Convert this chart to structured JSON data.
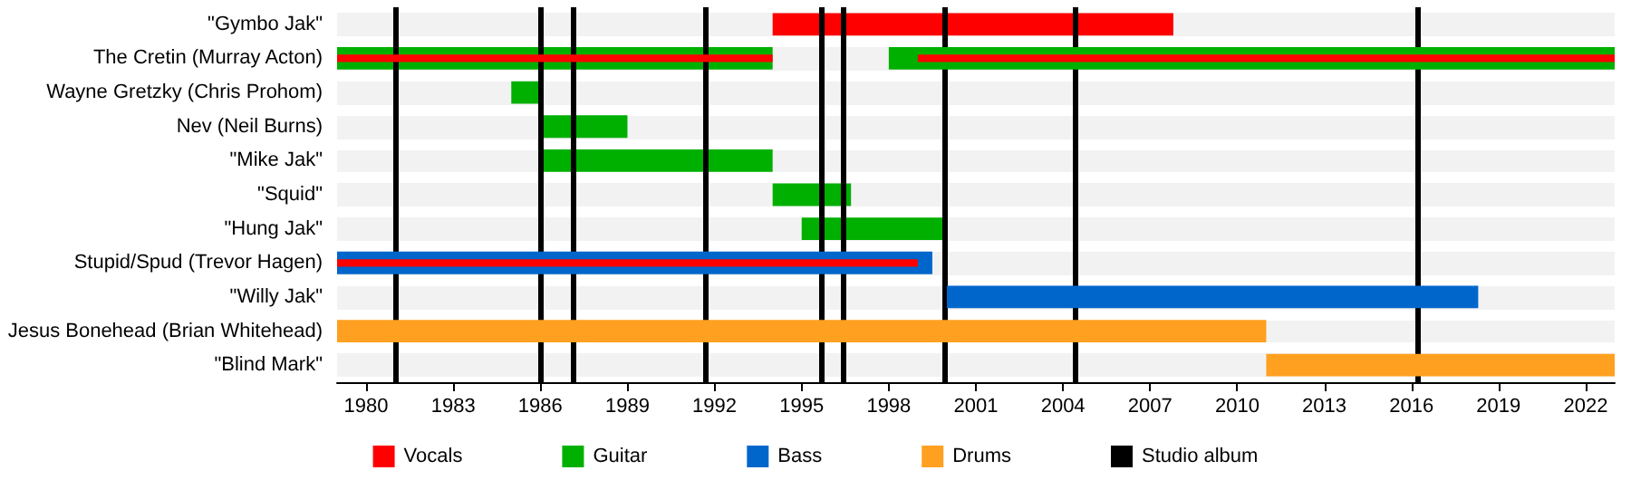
{
  "chart_data": {
    "type": "bar",
    "orientation": "horizontal",
    "categories": [
      "\"Gymbo Jak\"",
      "The Cretin (Murray Acton)",
      "Wayne Gretzky (Chris Prohom)",
      "Nev (Neil Burns)",
      "\"Mike Jak\"",
      "\"Squid\"",
      "\"Hung Jak\"",
      "Stupid/Spud (Trevor Hagen)",
      "\"Willy Jak\"",
      "Jesus Bonehead (Brian Whitehead)",
      "\"Blind Mark\""
    ],
    "series": [
      {
        "name": "Vocals",
        "color": "#ff0000",
        "base": [
          1994,
          null,
          null,
          null,
          null,
          null,
          null,
          null,
          null,
          null,
          null
        ],
        "values": [
          13.8,
          null,
          null,
          null,
          null,
          null,
          null,
          null,
          null,
          null,
          null
        ]
      },
      {
        "name": "Guitar",
        "color": "#00b000",
        "base": [
          null,
          1979,
          1985,
          1986,
          1986,
          1994,
          1995,
          null,
          null,
          null,
          null
        ],
        "values": [
          null,
          15,
          1,
          3,
          8,
          2.7,
          5,
          null,
          null,
          null,
          null
        ]
      },
      {
        "color": "#00b000",
        "base": [
          null,
          1998,
          null,
          null,
          null,
          null,
          null,
          null,
          null,
          null,
          null
        ],
        "values": [
          null,
          25,
          null,
          null,
          null,
          null,
          null,
          null,
          null,
          null,
          null
        ]
      },
      {
        "name": "Bass",
        "color": "#0066cc",
        "base": [
          null,
          null,
          null,
          null,
          null,
          null,
          null,
          1979,
          2000,
          null,
          null
        ],
        "values": [
          null,
          null,
          null,
          null,
          null,
          null,
          null,
          20.5,
          18.3,
          null,
          null
        ]
      },
      {
        "name": "Drums",
        "color": "#ffa020",
        "base": [
          null,
          null,
          null,
          null,
          null,
          null,
          null,
          null,
          null,
          1979,
          2011
        ],
        "values": [
          null,
          null,
          null,
          null,
          null,
          null,
          null,
          null,
          null,
          32,
          12
        ]
      },
      {
        "color": "#ff0000",
        "base": [
          null,
          1979,
          null,
          null,
          null,
          null,
          null,
          1979,
          null,
          null,
          null
        ],
        "values": [
          null,
          15,
          null,
          null,
          null,
          null,
          null,
          20,
          null,
          null,
          null
        ]
      },
      {
        "color": "#ff0000",
        "base": [
          null,
          1999,
          null,
          null,
          null,
          null,
          null,
          null,
          null,
          null,
          null
        ],
        "values": [
          null,
          24,
          null,
          null,
          null,
          null,
          null,
          null,
          null,
          null,
          null
        ]
      }
    ],
    "xlim": [
      1979,
      2023
    ],
    "xticks": [
      1980,
      1983,
      1986,
      1989,
      1992,
      1995,
      1998,
      2001,
      2004,
      2007,
      2010,
      2013,
      2016,
      2019,
      2022
    ],
    "ref_lines": [
      {
        "axis": "x",
        "value": 1981,
        "label": "Studio album",
        "color": "#000000"
      },
      {
        "axis": "x",
        "value": 1986,
        "color": "#000000"
      },
      {
        "axis": "x",
        "value": 1987.1,
        "color": "#000000"
      },
      {
        "axis": "x",
        "value": 1991.7,
        "color": "#000000"
      },
      {
        "axis": "x",
        "value": 1995.65,
        "color": "#000000"
      },
      {
        "axis": "x",
        "value": 1996.4,
        "color": "#000000"
      },
      {
        "axis": "x",
        "value": 1999.9,
        "color": "#000000"
      },
      {
        "axis": "x",
        "value": 2004.4,
        "color": "#000000"
      },
      {
        "axis": "x",
        "value": 2016.2,
        "color": "#000000"
      }
    ],
    "grid": false,
    "legend": "bottom"
  }
}
